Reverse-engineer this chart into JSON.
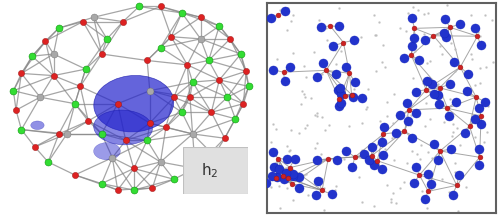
{
  "fig_width": 5.0,
  "fig_height": 2.16,
  "dpi": 100,
  "background_color": "#ffffff",
  "label_text": "h$_2$",
  "label_fontsize": 11,
  "label_bg": "#e0e0e0",
  "label_edge": "#c0c0c0",
  "cage_color_ca": "#33dd33",
  "cage_color_o": "#dd2222",
  "cage_color_al": "#a8a8a8",
  "cage_bond_color": "#888888",
  "cavity_color": "#2222cc",
  "right_bg": "#ffffff",
  "right_border": "#606060",
  "bond_color_right": "#888888",
  "na_color": "#bbbbbb",
  "c_color": "#cc2222",
  "o_color": "#2233cc"
}
